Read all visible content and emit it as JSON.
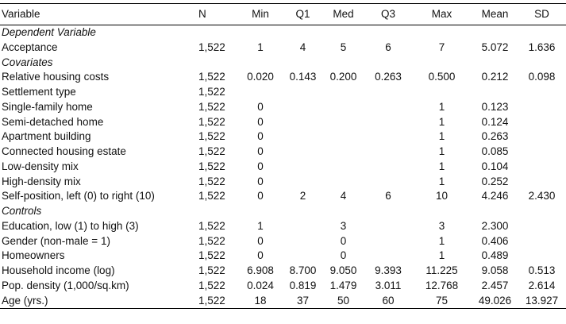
{
  "table": {
    "columns": [
      "Variable",
      "N",
      "Min",
      "Q1",
      "Med",
      "Q3",
      "Max",
      "Mean",
      "SD"
    ],
    "rows": [
      {
        "section": "Dependent Variable"
      },
      {
        "label": "Acceptance",
        "values": [
          "1,522",
          "1",
          "4",
          "5",
          "6",
          "7",
          "5.072",
          "1.636"
        ]
      },
      {
        "section": "Covariates"
      },
      {
        "label": "Relative housing costs",
        "values": [
          "1,522",
          "0.020",
          "0.143",
          "0.200",
          "0.263",
          "0.500",
          "0.212",
          "0.098"
        ]
      },
      {
        "label": "Settlement type",
        "values": [
          "1,522",
          null,
          null,
          null,
          null,
          null,
          null,
          null
        ]
      },
      {
        "label": "Single-family home",
        "values": [
          "1,522",
          "0",
          null,
          null,
          null,
          "1",
          "0.123",
          null
        ]
      },
      {
        "label": "Semi-detached home",
        "values": [
          "1,522",
          "0",
          null,
          null,
          null,
          "1",
          "0.124",
          null
        ]
      },
      {
        "label": "Apartment building",
        "values": [
          "1,522",
          "0",
          null,
          null,
          null,
          "1",
          "0.263",
          null
        ]
      },
      {
        "label": "Connected housing estate",
        "values": [
          "1,522",
          "0",
          null,
          null,
          null,
          "1",
          "0.085",
          null
        ]
      },
      {
        "label": "Low-density mix",
        "values": [
          "1,522",
          "0",
          null,
          null,
          null,
          "1",
          "0.104",
          null
        ]
      },
      {
        "label": "High-density mix",
        "values": [
          "1,522",
          "0",
          null,
          null,
          null,
          "1",
          "0.252",
          null
        ]
      },
      {
        "label": "Self-position, left (0) to right (10)",
        "values": [
          "1,522",
          "0",
          "2",
          "4",
          "6",
          "10",
          "4.246",
          "2.430"
        ]
      },
      {
        "section": "Controls"
      },
      {
        "label": "Education, low (1) to high (3)",
        "values": [
          "1,522",
          "1",
          null,
          "3",
          null,
          "3",
          "2.300",
          null
        ]
      },
      {
        "label": "Gender (non-male = 1)",
        "values": [
          "1,522",
          "0",
          null,
          "0",
          null,
          "1",
          "0.406",
          null
        ]
      },
      {
        "label": "Homeowners",
        "values": [
          "1,522",
          "0",
          null,
          "0",
          null,
          "1",
          "0.489",
          null
        ]
      },
      {
        "label": "Household income (log)",
        "values": [
          "1,522",
          "6.908",
          "8.700",
          "9.050",
          "9.393",
          "11.225",
          "9.058",
          "0.513"
        ]
      },
      {
        "label": "Pop. density (1,000/sq.km)",
        "values": [
          "1,522",
          "0.024",
          "0.819",
          "1.479",
          "3.011",
          "12.768",
          "2.457",
          "2.614"
        ]
      },
      {
        "label": "Age (yrs.)",
        "values": [
          "1,522",
          "18",
          "37",
          "50",
          "60",
          "75",
          "49.026",
          "13.927"
        ]
      }
    ]
  }
}
